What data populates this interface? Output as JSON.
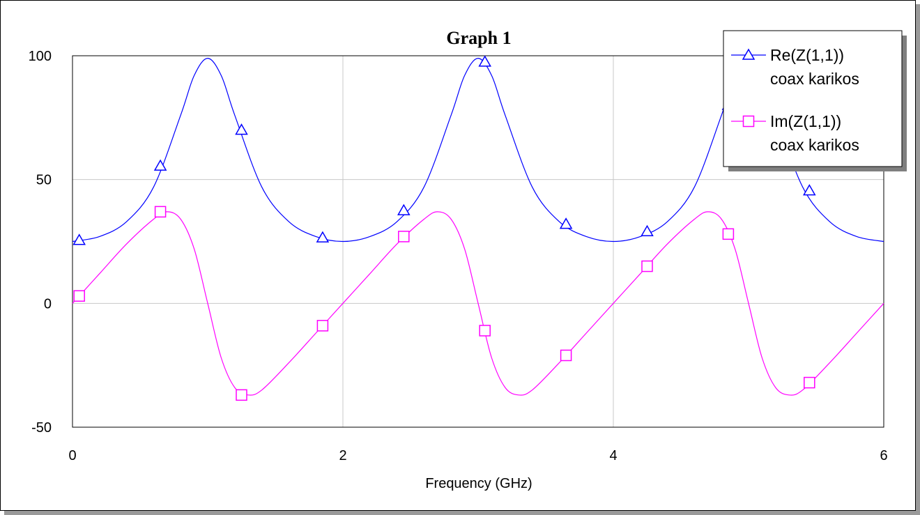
{
  "chart_data": {
    "type": "line",
    "title": "Graph 1",
    "xlabel": "Frequency (GHz)",
    "ylabel": "",
    "xlim": [
      0,
      6
    ],
    "ylim": [
      -50,
      100
    ],
    "xticks": [
      "0",
      "2",
      "4",
      "6"
    ],
    "yticks": [
      "-50",
      "0",
      "50",
      "100"
    ],
    "grid": true,
    "legend_position": "top-right",
    "series": [
      {
        "name": "Re(Z(1,1))",
        "label_line2": "coax karikos",
        "color": "#0000ff",
        "marker": "triangle",
        "x": [
          0.0,
          0.2,
          0.4,
          0.6,
          0.8,
          0.9,
          1.0,
          1.1,
          1.2,
          1.4,
          1.6,
          1.8,
          2.0,
          2.2,
          2.4,
          2.6,
          2.8,
          2.9,
          3.0,
          3.1,
          3.2,
          3.4,
          3.6,
          3.8,
          4.0,
          4.2,
          4.4,
          4.6,
          4.8,
          4.9,
          5.0,
          5.1,
          5.2,
          5.4,
          5.6,
          5.8,
          6.0
        ],
        "y": [
          25,
          27,
          33,
          47,
          76,
          92,
          99,
          92,
          76,
          47,
          33,
          27,
          25,
          27,
          33,
          47,
          76,
          92,
          99,
          92,
          76,
          47,
          33,
          27,
          25,
          27,
          33,
          47,
          76,
          92,
          99,
          92,
          76,
          47,
          33,
          27,
          25
        ],
        "markers_x": [
          0.05,
          0.65,
          1.25,
          1.85,
          2.45,
          3.05,
          3.65,
          4.25,
          4.85,
          5.45
        ],
        "markers_y": [
          25.5,
          55.5,
          70,
          26.5,
          37.5,
          97.5,
          32,
          29,
          80,
          45.5
        ]
      },
      {
        "name": "Im(Z(1,1))",
        "label_line2": "coax karikos",
        "color": "#ff00ff",
        "marker": "square",
        "x": [
          0.0,
          0.2,
          0.4,
          0.6,
          0.7,
          0.8,
          0.9,
          1.0,
          1.1,
          1.2,
          1.3,
          1.4,
          1.6,
          1.8,
          2.0,
          2.2,
          2.4,
          2.6,
          2.7,
          2.8,
          2.9,
          3.0,
          3.1,
          3.2,
          3.3,
          3.4,
          3.6,
          3.8,
          4.0,
          4.2,
          4.4,
          4.6,
          4.7,
          4.8,
          4.9,
          5.0,
          5.1,
          5.2,
          5.3,
          5.4,
          5.6,
          5.8,
          6.0
        ],
        "y": [
          0,
          12,
          24,
          34,
          37,
          34,
          22,
          0,
          -22,
          -34,
          -37,
          -35,
          -24,
          -12,
          0,
          12,
          24,
          34,
          37,
          34,
          22,
          0,
          -22,
          -34,
          -37,
          -35,
          -24,
          -12,
          0,
          12,
          24,
          34,
          37,
          34,
          22,
          0,
          -22,
          -34,
          -37,
          -35,
          -24,
          -12,
          0
        ],
        "markers_x": [
          0.05,
          0.65,
          1.25,
          1.85,
          2.45,
          3.05,
          3.65,
          4.25,
          4.85,
          5.45
        ],
        "markers_y": [
          3,
          37,
          -37,
          -9,
          27,
          -11,
          -21,
          15,
          28,
          -32
        ]
      }
    ]
  }
}
